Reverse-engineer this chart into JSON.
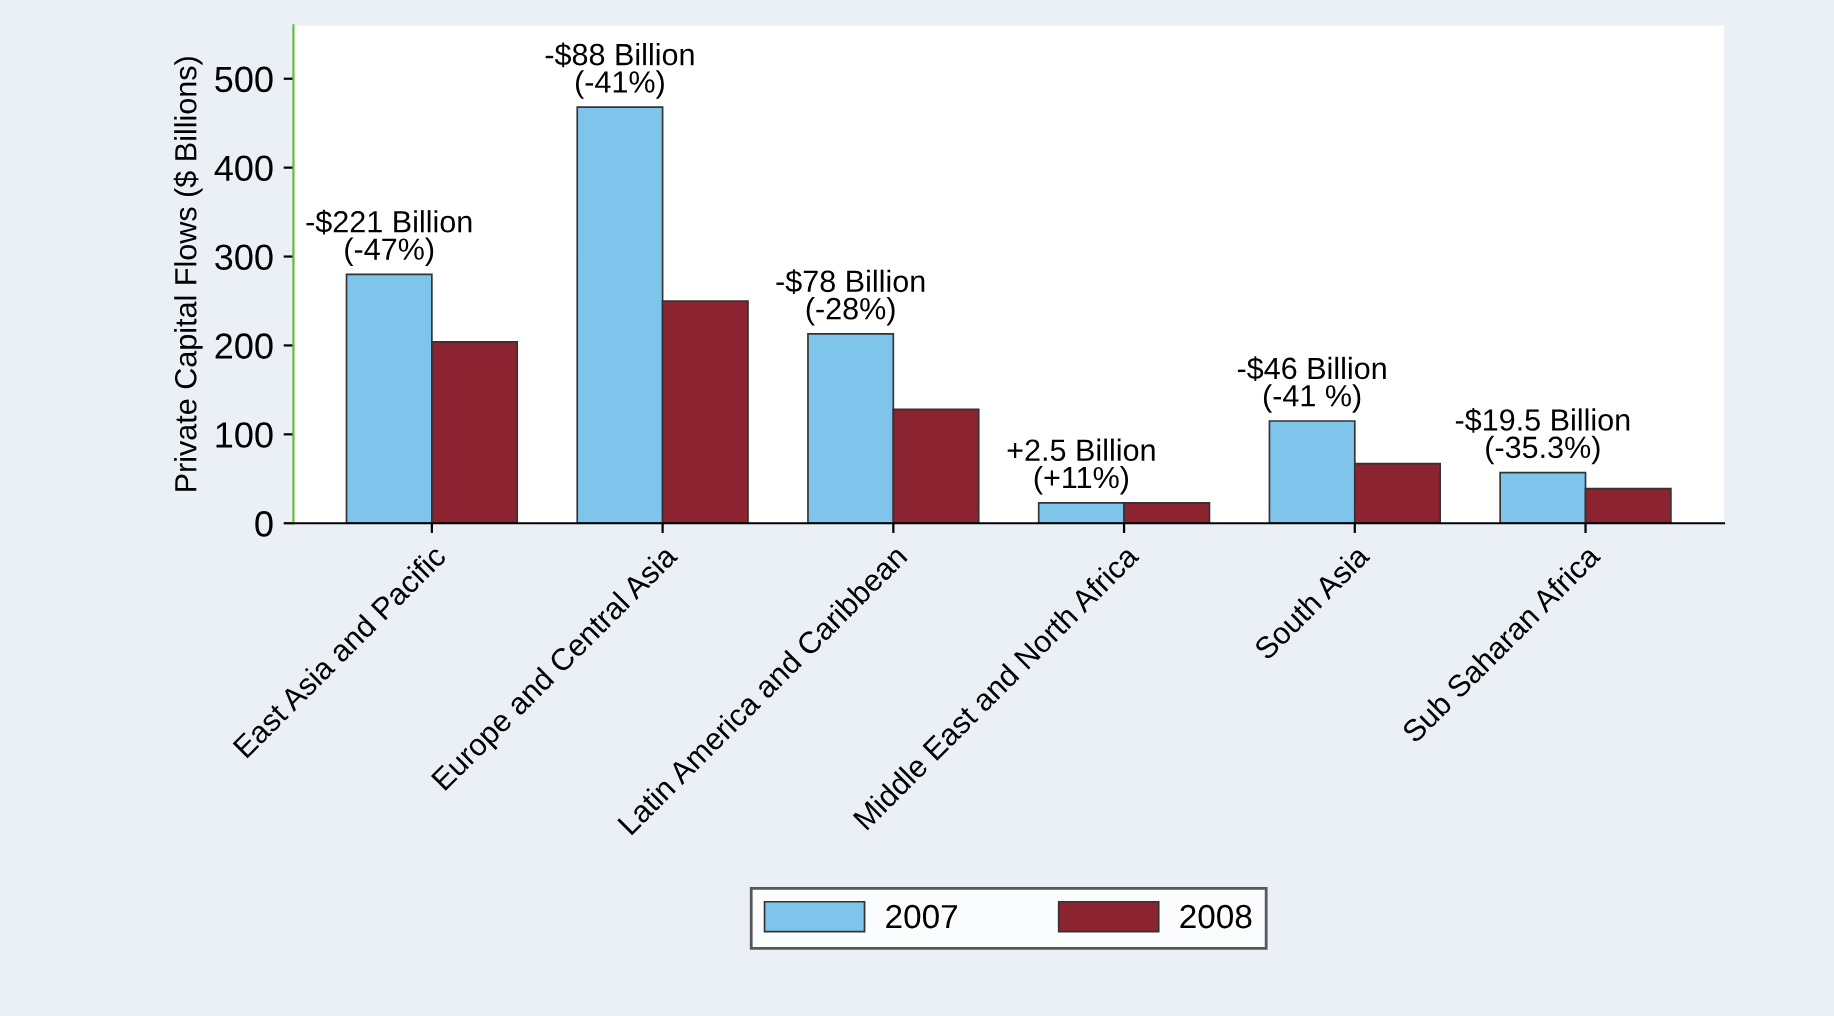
{
  "chart_data": {
    "type": "bar",
    "ylabel": "Private Capital Flows ($ Billions)",
    "categories": [
      "East Asia and Pacific",
      "Europe and Central Asia",
      "Latin America and Caribbean",
      "Middle East and North Africa",
      "South Asia",
      "Sub Saharan Africa"
    ],
    "series": [
      {
        "name": "2007",
        "color": "#7fc4ea",
        "values": [
          280,
          468,
          213,
          23,
          115,
          57
        ]
      },
      {
        "name": "2008",
        "color": "#8b2331",
        "values": [
          204,
          250,
          128,
          23,
          67,
          39
        ]
      }
    ],
    "ylim": [
      0,
      560
    ],
    "yticks": [
      0,
      100,
      200,
      300,
      400,
      500
    ],
    "grid": false,
    "legend": "bottom",
    "annotations": [
      {
        "text": "-$221 Billion\n(-47%)",
        "x": "East Asia and Pacific",
        "y": 280
      },
      {
        "text": "-$88 Billion\n(-41%)",
        "x": "Europe and Central Asia",
        "y": 468
      },
      {
        "text": "-$78 Billion\n(-28%)",
        "x": "Latin America and Caribbean",
        "y": 213
      },
      {
        "text": "+2.5 Billion\n(+11%)",
        "x": "Middle East and North Africa",
        "y": 23
      },
      {
        "text": "-$46 Billion\n(-41 %)",
        "x": "South Asia",
        "y": 115
      },
      {
        "text": "-$19.5 Billion\n(-35.3%)",
        "x": "Sub Saharan Africa",
        "y": 57
      }
    ]
  }
}
